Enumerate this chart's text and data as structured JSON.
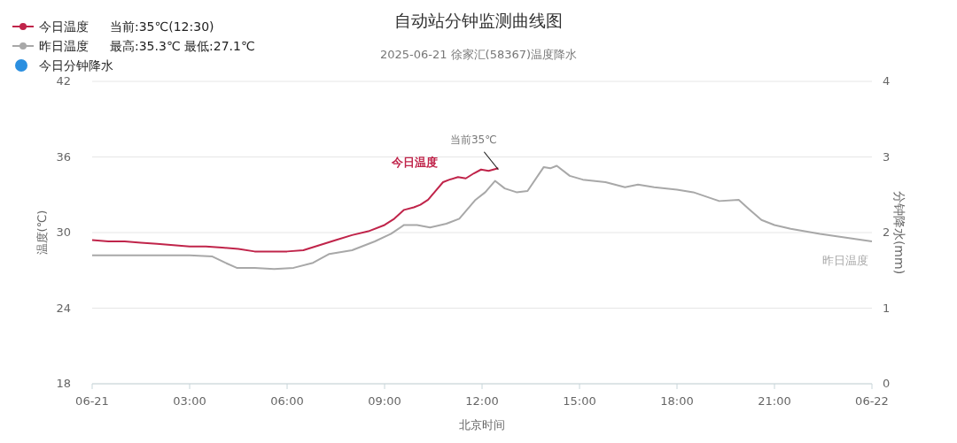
{
  "chart_data": {
    "type": "line",
    "title": "自动站分钟监测曲线图",
    "subtitle": "2025-06-21 徐家汇(58367)温度降水",
    "xlabel": "北京时间",
    "ylabel": "温度(℃)",
    "y2label": "分钟降水(mm)",
    "xlim": [
      0,
      24
    ],
    "xticks": [
      {
        "value": 0,
        "label": "06-21"
      },
      {
        "value": 3,
        "label": "03:00"
      },
      {
        "value": 6,
        "label": "06:00"
      },
      {
        "value": 9,
        "label": "09:00"
      },
      {
        "value": 12,
        "label": "12:00"
      },
      {
        "value": 15,
        "label": "15:00"
      },
      {
        "value": 18,
        "label": "18:00"
      },
      {
        "value": 21,
        "label": "21:00"
      },
      {
        "value": 24,
        "label": "06-22"
      }
    ],
    "ylim": [
      18,
      42
    ],
    "yticks": [
      18,
      24,
      30,
      36,
      42
    ],
    "y2lim": [
      0,
      4
    ],
    "y2ticks": [
      0,
      1,
      2,
      3,
      4
    ],
    "grid": "y",
    "legend": "top left",
    "annotations": [
      "当前:35℃(12:30)",
      "最高:35.3℃ 最低:27.1℃",
      {
        "text": "当前35℃",
        "x": 12.5,
        "y": 35
      }
    ],
    "series": [
      {
        "name": "今日温度",
        "color": "#c0244a",
        "x": [
          0,
          0.5,
          1,
          1.5,
          2,
          2.5,
          3,
          3.5,
          4,
          4.5,
          5,
          5.5,
          6,
          6.5,
          7,
          7.5,
          8,
          8.5,
          9,
          9.3,
          9.6,
          9.9,
          10.1,
          10.34,
          10.6,
          10.8,
          11,
          11.26,
          11.5,
          11.75,
          11.97,
          12.2,
          12.5
        ],
        "values": [
          29.4,
          29.3,
          29.3,
          29.2,
          29.1,
          29.0,
          28.9,
          28.9,
          28.8,
          28.7,
          28.5,
          28.5,
          28.5,
          28.6,
          29.0,
          29.4,
          29.8,
          30.1,
          30.6,
          31.1,
          31.8,
          32.0,
          32.2,
          32.6,
          33.4,
          34.0,
          34.2,
          34.4,
          34.3,
          34.7,
          35.0,
          34.9,
          35.1
        ]
      },
      {
        "name": "昨日温度",
        "color": "#a8a8a8",
        "x": [
          0,
          1,
          2,
          3,
          3.7,
          4.1,
          4.45,
          5,
          5.6,
          6.2,
          6.8,
          7.3,
          8,
          8.7,
          9.2,
          9.6,
          10,
          10.4,
          10.9,
          11.3,
          11.8,
          12.1,
          12.4,
          12.7,
          13.06,
          13.4,
          13.9,
          14.1,
          14.3,
          14.7,
          15.1,
          15.8,
          16.4,
          16.8,
          17.3,
          18,
          18.5,
          19.3,
          19.9,
          20.2,
          20.6,
          21,
          21.5,
          22.4,
          23.2,
          24
        ],
        "values": [
          28.2,
          28.2,
          28.2,
          28.2,
          28.1,
          27.6,
          27.2,
          27.2,
          27.1,
          27.2,
          27.6,
          28.3,
          28.6,
          29.3,
          29.9,
          30.6,
          30.6,
          30.4,
          30.7,
          31.1,
          32.6,
          33.2,
          34.1,
          33.5,
          33.2,
          33.3,
          35.2,
          35.1,
          35.3,
          34.5,
          34.2,
          34.0,
          33.6,
          33.8,
          33.6,
          33.4,
          33.2,
          32.5,
          32.6,
          31.9,
          31.0,
          30.6,
          30.3,
          29.9,
          29.6,
          29.3
        ]
      },
      {
        "name": "今日分钟降水",
        "color": "#2b8fe0",
        "type": "scatter"
      }
    ]
  }
}
